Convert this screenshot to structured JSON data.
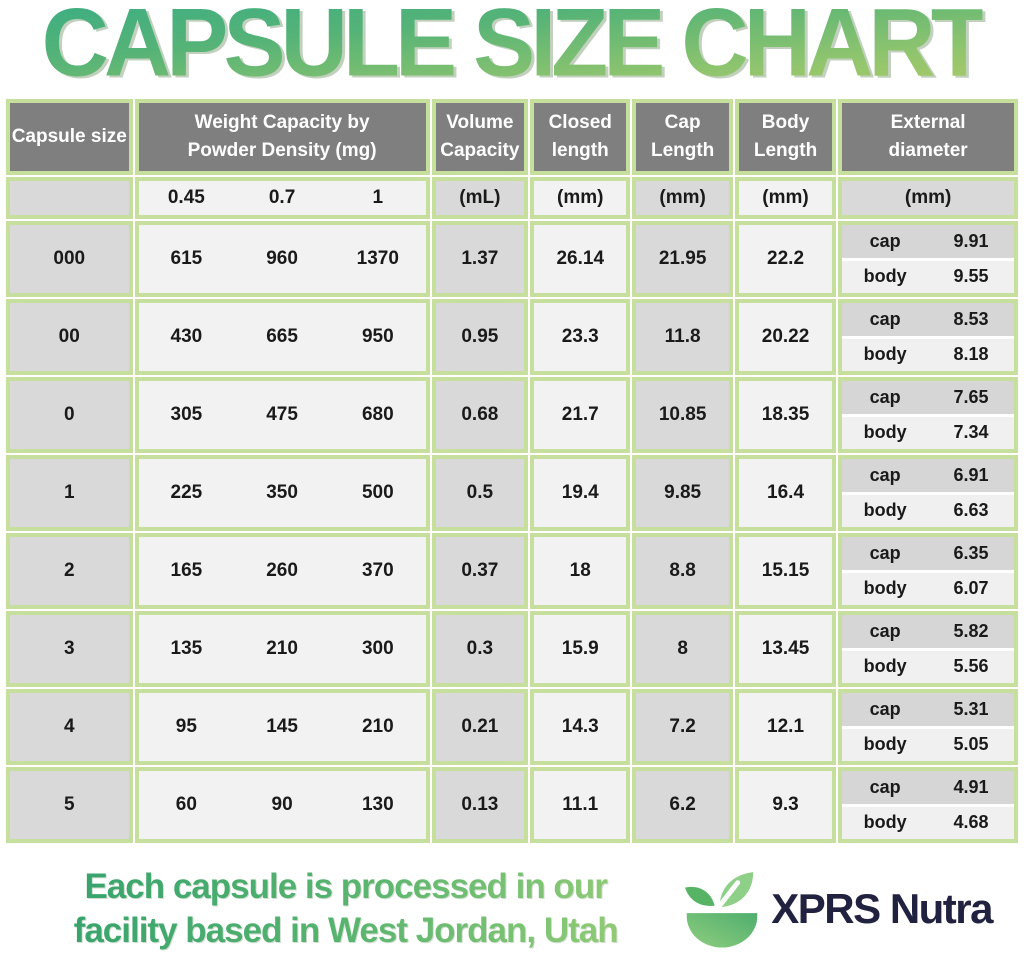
{
  "title": "CAPSULE SIZE CHART",
  "table": {
    "headers": {
      "capsule_size": "Capsule size",
      "weight_capacity": "Weight Capacity by\nPowder Density (mg)",
      "volume_capacity": "Volume\nCapacity",
      "closed_length": "Closed\nlength",
      "cap_length": "Cap\nLength",
      "body_length": "Body\nLength",
      "external_diameter": "External\ndiameter"
    },
    "units": {
      "density_045": "0.45",
      "density_07": "0.7",
      "density_1": "1",
      "volume": "(mL)",
      "closed": "(mm)",
      "cap": "(mm)",
      "body": "(mm)",
      "external": "(mm)"
    },
    "ext_labels": {
      "cap": "cap",
      "body": "body"
    },
    "rows": [
      {
        "size": "000",
        "w045": "615",
        "w07": "960",
        "w1": "1370",
        "volume": "1.37",
        "closed": "26.14",
        "cap_len": "21.95",
        "body_len": "22.2",
        "ext_cap": "9.91",
        "ext_body": "9.55"
      },
      {
        "size": "00",
        "w045": "430",
        "w07": "665",
        "w1": "950",
        "volume": "0.95",
        "closed": "23.3",
        "cap_len": "11.8",
        "body_len": "20.22",
        "ext_cap": "8.53",
        "ext_body": "8.18"
      },
      {
        "size": "0",
        "w045": "305",
        "w07": "475",
        "w1": "680",
        "volume": "0.68",
        "closed": "21.7",
        "cap_len": "10.85",
        "body_len": "18.35",
        "ext_cap": "7.65",
        "ext_body": "7.34"
      },
      {
        "size": "1",
        "w045": "225",
        "w07": "350",
        "w1": "500",
        "volume": "0.5",
        "closed": "19.4",
        "cap_len": "9.85",
        "body_len": "16.4",
        "ext_cap": "6.91",
        "ext_body": "6.63"
      },
      {
        "size": "2",
        "w045": "165",
        "w07": "260",
        "w1": "370",
        "volume": "0.37",
        "closed": "18",
        "cap_len": "8.8",
        "body_len": "15.15",
        "ext_cap": "6.35",
        "ext_body": "6.07"
      },
      {
        "size": "3",
        "w045": "135",
        "w07": "210",
        "w1": "300",
        "volume": "0.3",
        "closed": "15.9",
        "cap_len": "8",
        "body_len": "13.45",
        "ext_cap": "5.82",
        "ext_body": "5.56"
      },
      {
        "size": "4",
        "w045": "95",
        "w07": "145",
        "w1": "210",
        "volume": "0.21",
        "closed": "14.3",
        "cap_len": "7.2",
        "body_len": "12.1",
        "ext_cap": "5.31",
        "ext_body": "5.05"
      },
      {
        "size": "5",
        "w045": "60",
        "w07": "90",
        "w1": "130",
        "volume": "0.13",
        "closed": "11.1",
        "cap_len": "6.2",
        "body_len": "9.3",
        "ext_cap": "4.91",
        "ext_body": "4.68"
      }
    ]
  },
  "footer": {
    "line1": "Each capsule is processed in our",
    "line2": "facility based in West Jordan, Utah",
    "brand": "XPRS Nutra"
  },
  "colors": {
    "title_gradient_top": "#3fae81",
    "title_gradient_bottom": "#abca67",
    "table_border_green": "#c6df9c",
    "header_gray": "#7f7f7f",
    "cell_gray": "#d9d9d9",
    "cell_light": "#f2f2f2",
    "ext_cap_gray": "#d6d6d6",
    "ext_body_light": "#f0f0f0",
    "brand_navy": "#20223f",
    "footer_green_start": "#2f9f6c",
    "footer_green_end": "#9ed077"
  },
  "chart_data": {
    "type": "table",
    "title": "CAPSULE SIZE CHART",
    "columns": [
      "Capsule size",
      "Weight Capacity by Powder Density 0.45 (mg)",
      "Weight Capacity by Powder Density 0.7 (mg)",
      "Weight Capacity by Powder Density 1 (mg)",
      "Volume Capacity (mL)",
      "Closed length (mm)",
      "Cap Length (mm)",
      "Body Length (mm)",
      "External diameter cap (mm)",
      "External diameter body (mm)"
    ],
    "rows": [
      [
        "000",
        615,
        960,
        1370,
        1.37,
        26.14,
        21.95,
        22.2,
        9.91,
        9.55
      ],
      [
        "00",
        430,
        665,
        950,
        0.95,
        23.3,
        11.8,
        20.22,
        8.53,
        8.18
      ],
      [
        "0",
        305,
        475,
        680,
        0.68,
        21.7,
        10.85,
        18.35,
        7.65,
        7.34
      ],
      [
        "1",
        225,
        350,
        500,
        0.5,
        19.4,
        9.85,
        16.4,
        6.91,
        6.63
      ],
      [
        "2",
        165,
        260,
        370,
        0.37,
        18,
        8.8,
        15.15,
        6.35,
        6.07
      ],
      [
        "3",
        135,
        210,
        300,
        0.3,
        15.9,
        8,
        13.45,
        5.82,
        5.56
      ],
      [
        "4",
        95,
        145,
        210,
        0.21,
        14.3,
        7.2,
        12.1,
        5.31,
        5.05
      ],
      [
        "5",
        60,
        90,
        130,
        0.13,
        11.1,
        6.2,
        9.3,
        4.91,
        4.68
      ]
    ]
  }
}
